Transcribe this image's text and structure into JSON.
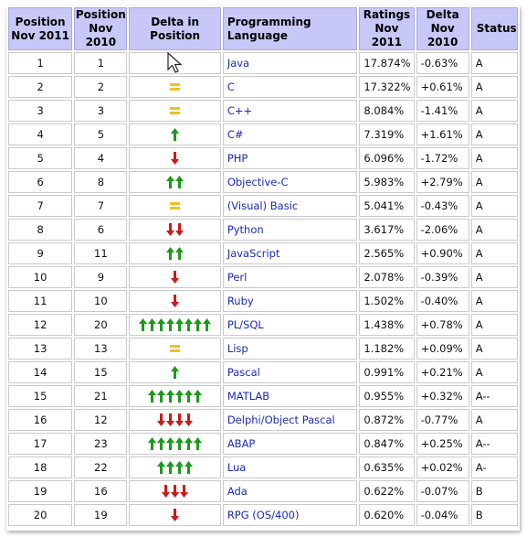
{
  "header": {
    "pos2011": "Position\nNov 2011",
    "pos2010": "Position\nNov 2010",
    "delta_pos": "Delta in Position",
    "language": "Programming Language",
    "ratings": "Ratings\nNov 2011",
    "delta": "Delta\nNov 2010",
    "status": "Status"
  },
  "colors": {
    "up": "#1a9a1a",
    "down": "#d01818",
    "same": "#f0c020"
  },
  "rows": [
    {
      "p2011": "1",
      "p2010": "1",
      "move": "cursor",
      "count": 0,
      "lang": "Java",
      "rating": "17.874%",
      "delta": "-0.63%",
      "status": "A"
    },
    {
      "p2011": "2",
      "p2010": "2",
      "move": "same",
      "count": 1,
      "lang": "C",
      "rating": "17.322%",
      "delta": "+0.61%",
      "status": "A"
    },
    {
      "p2011": "3",
      "p2010": "3",
      "move": "same",
      "count": 1,
      "lang": "C++",
      "rating": "8.084%",
      "delta": "-1.41%",
      "status": "A"
    },
    {
      "p2011": "4",
      "p2010": "5",
      "move": "up",
      "count": 1,
      "lang": "C#",
      "rating": "7.319%",
      "delta": "+1.61%",
      "status": "A"
    },
    {
      "p2011": "5",
      "p2010": "4",
      "move": "down",
      "count": 1,
      "lang": "PHP",
      "rating": "6.096%",
      "delta": "-1.72%",
      "status": "A"
    },
    {
      "p2011": "6",
      "p2010": "8",
      "move": "up",
      "count": 2,
      "lang": "Objective-C",
      "rating": "5.983%",
      "delta": "+2.79%",
      "status": "A"
    },
    {
      "p2011": "7",
      "p2010": "7",
      "move": "same",
      "count": 1,
      "lang": "(Visual) Basic",
      "rating": "5.041%",
      "delta": "-0.43%",
      "status": "A"
    },
    {
      "p2011": "8",
      "p2010": "6",
      "move": "down",
      "count": 2,
      "lang": "Python",
      "rating": "3.617%",
      "delta": "-2.06%",
      "status": "A"
    },
    {
      "p2011": "9",
      "p2010": "11",
      "move": "up",
      "count": 2,
      "lang": "JavaScript",
      "rating": "2.565%",
      "delta": "+0.90%",
      "status": "A"
    },
    {
      "p2011": "10",
      "p2010": "9",
      "move": "down",
      "count": 1,
      "lang": "Perl",
      "rating": "2.078%",
      "delta": "-0.39%",
      "status": "A"
    },
    {
      "p2011": "11",
      "p2010": "10",
      "move": "down",
      "count": 1,
      "lang": "Ruby",
      "rating": "1.502%",
      "delta": "-0.40%",
      "status": "A"
    },
    {
      "p2011": "12",
      "p2010": "20",
      "move": "up",
      "count": 8,
      "lang": "PL/SQL",
      "rating": "1.438%",
      "delta": "+0.78%",
      "status": "A"
    },
    {
      "p2011": "13",
      "p2010": "13",
      "move": "same",
      "count": 1,
      "lang": "Lisp",
      "rating": "1.182%",
      "delta": "+0.09%",
      "status": "A"
    },
    {
      "p2011": "14",
      "p2010": "15",
      "move": "up",
      "count": 1,
      "lang": "Pascal",
      "rating": "0.991%",
      "delta": "+0.21%",
      "status": "A"
    },
    {
      "p2011": "15",
      "p2010": "21",
      "move": "up",
      "count": 6,
      "lang": "MATLAB",
      "rating": "0.955%",
      "delta": "+0.32%",
      "status": "A--"
    },
    {
      "p2011": "16",
      "p2010": "12",
      "move": "down",
      "count": 4,
      "lang": "Delphi/Object Pascal",
      "rating": "0.872%",
      "delta": "-0.77%",
      "status": "A"
    },
    {
      "p2011": "17",
      "p2010": "23",
      "move": "up",
      "count": 6,
      "lang": "ABAP",
      "rating": "0.847%",
      "delta": "+0.25%",
      "status": "A--"
    },
    {
      "p2011": "18",
      "p2010": "22",
      "move": "up",
      "count": 4,
      "lang": "Lua",
      "rating": "0.635%",
      "delta": "+0.02%",
      "status": "A-"
    },
    {
      "p2011": "19",
      "p2010": "16",
      "move": "down",
      "count": 3,
      "lang": "Ada",
      "rating": "0.622%",
      "delta": "-0.07%",
      "status": "B"
    },
    {
      "p2011": "20",
      "p2010": "19",
      "move": "down",
      "count": 1,
      "lang": "RPG (OS/400)",
      "rating": "0.620%",
      "delta": "-0.04%",
      "status": "B"
    }
  ]
}
